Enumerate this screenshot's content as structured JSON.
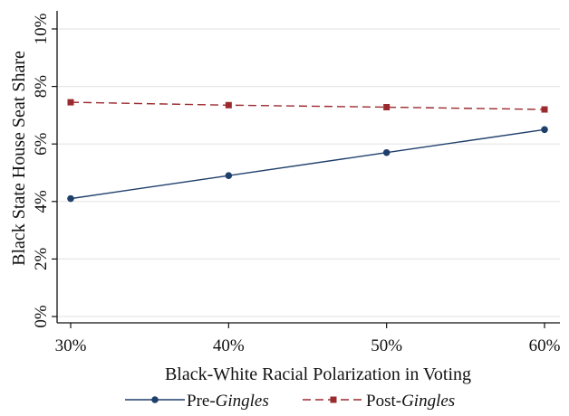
{
  "chart_data": {
    "type": "line",
    "x": [
      30,
      40,
      50,
      60
    ],
    "x_tick_labels": [
      "30%",
      "40%",
      "50%",
      "60%"
    ],
    "y_tick_values": [
      0,
      2,
      4,
      6,
      8,
      10
    ],
    "y_tick_labels": [
      "0%",
      "2%",
      "4%",
      "6%",
      "8%",
      "10%"
    ],
    "xlabel": "Black-White Racial Polarization in Voting",
    "ylabel": "Black State House Seat Share",
    "xlim": [
      30,
      60
    ],
    "ylim": [
      0,
      10
    ],
    "grid": "horizontal",
    "legend_position": "bottom",
    "series": [
      {
        "name_prefix": "Pre-",
        "name_italic": "Gingles",
        "values": [
          4.1,
          4.9,
          5.7,
          6.5
        ],
        "color": "#1f3f6b",
        "line_style": "solid",
        "marker": "circle"
      },
      {
        "name_prefix": "Post-",
        "name_italic": "Gingles",
        "values": [
          7.45,
          7.35,
          7.28,
          7.2
        ],
        "color": "#9b2a2e",
        "line_style": "dashed",
        "marker": "square"
      }
    ]
  },
  "colors": {
    "grid": "#e6e6e6",
    "axis": "#111111",
    "background": "#ffffff"
  }
}
